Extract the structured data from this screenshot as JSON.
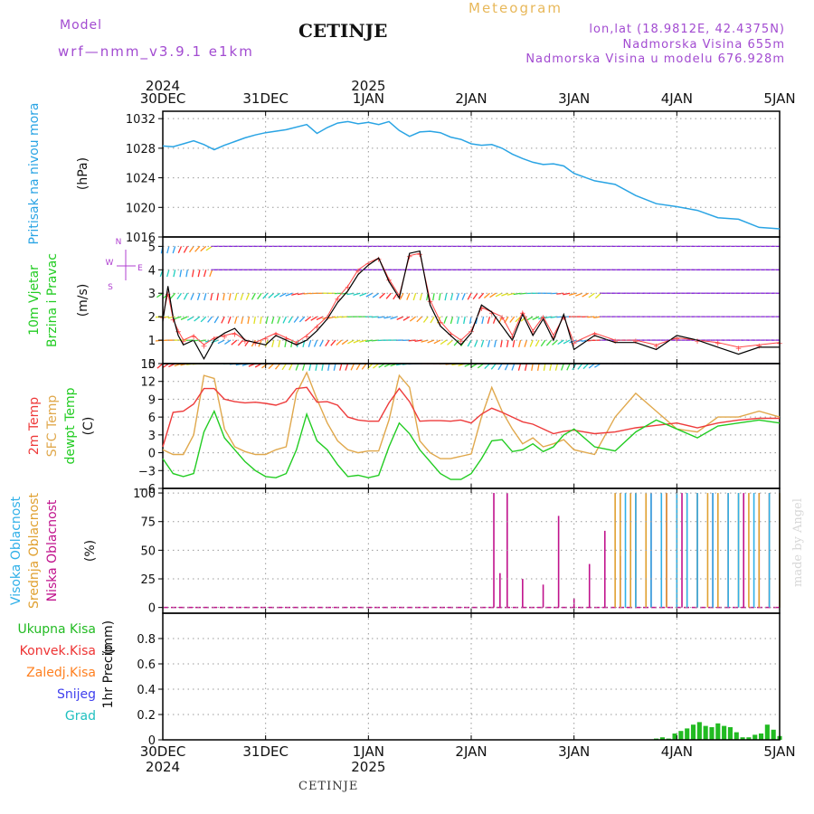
{
  "header": {
    "model_label": "Model",
    "model_id": "wrf—nmm_v3.9.1  e1km",
    "title": "CETINJE",
    "product": "Meteogram",
    "coords": "lon,lat (18.9812E, 42.4375N)",
    "elevation": "Nadmorska Visina 655m",
    "model_elevation": "Nadmorska Visina u modelu 676.928m"
  },
  "footer": {
    "station": "CETINJE",
    "credit": "made by Angel"
  },
  "colors": {
    "pressure": "#2aa4e4",
    "temp2m": "#ee3b3b",
    "sfc_temp": "#e0a84c",
    "dewpt": "#22cc22",
    "wind_speed": "#000000",
    "gust": "#ff4444",
    "cloud_high": "#30b0e8",
    "cloud_mid": "#e0a030",
    "cloud_low": "#c0128c",
    "precip_total": "#22bb22",
    "precip_conv": "#ee3333",
    "precip_frz": "#ff8020",
    "snow": "#4040ee",
    "hail": "#20c0c0",
    "arrow_purple": "#8822dd"
  },
  "chart_data": [
    {
      "type": "line",
      "panel": "pressure",
      "ylabel_1": "Pritisak na nivou mora",
      "ylabel_2": "(hPa)",
      "ylim": [
        1016,
        1033
      ],
      "yticks": [
        "1016",
        "1020",
        "1024",
        "1028",
        "1032"
      ],
      "ytick_values": [
        1016,
        1020,
        1024,
        1028,
        1032
      ],
      "x_top_years": [
        "2024",
        "2025"
      ],
      "x_top_year_days": [
        0,
        2
      ],
      "x_ticks": [
        "30DEC",
        "31DEC",
        "1JAN",
        "2JAN",
        "3JAN",
        "4JAN",
        "5JAN"
      ],
      "grid": true,
      "x": [
        0,
        0.1,
        0.2,
        0.3,
        0.4,
        0.5,
        0.6,
        0.7,
        0.8,
        0.9,
        1.0,
        1.2,
        1.4,
        1.5,
        1.6,
        1.7,
        1.8,
        1.9,
        2.0,
        2.1,
        2.2,
        2.3,
        2.4,
        2.5,
        2.6,
        2.7,
        2.8,
        2.9,
        3.0,
        3.1,
        3.2,
        3.3,
        3.4,
        3.5,
        3.6,
        3.7,
        3.8,
        3.9,
        4.0,
        4.2,
        4.4,
        4.6,
        4.8,
        5.0,
        5.2,
        5.4,
        5.6,
        5.8,
        6.0
      ],
      "series": [
        {
          "values": [
            1028.3,
            1028.2,
            1028.6,
            1029.0,
            1028.5,
            1027.8,
            1028.4,
            1028.9,
            1029.4,
            1029.8,
            1030.1,
            1030.5,
            1031.2,
            1030.0,
            1030.8,
            1031.4,
            1031.6,
            1031.3,
            1031.5,
            1031.2,
            1031.6,
            1030.4,
            1029.6,
            1030.2,
            1030.3,
            1030.1,
            1029.5,
            1029.2,
            1028.6,
            1028.4,
            1028.5,
            1028.0,
            1027.2,
            1026.6,
            1026.1,
            1025.8,
            1025.9,
            1025.6,
            1024.6,
            1023.6,
            1023.1,
            1021.6,
            1020.5,
            1020.1,
            1019.6,
            1018.6,
            1018.4,
            1017.3,
            1017.1
          ]
        }
      ]
    },
    {
      "type": "line",
      "panel": "wind",
      "ylabel_1": "10m Vjetar",
      "ylabel_2": "Brzina i Pravac",
      "ylabel_3": "(m/s)",
      "compass": {
        "n": "N",
        "s": "S",
        "e": "E",
        "w": "W"
      },
      "ylim": [
        0,
        5.4
      ],
      "yticks": [
        "0",
        "1",
        "2",
        "3",
        "4",
        "5"
      ],
      "ytick_values": [
        0,
        1,
        2,
        3,
        4,
        5
      ],
      "grid": true,
      "x": [
        0,
        0.05,
        0.1,
        0.15,
        0.2,
        0.3,
        0.4,
        0.5,
        0.6,
        0.7,
        0.8,
        0.9,
        1.0,
        1.1,
        1.2,
        1.3,
        1.4,
        1.5,
        1.6,
        1.7,
        1.8,
        1.9,
        2.0,
        2.1,
        2.2,
        2.3,
        2.4,
        2.5,
        2.6,
        2.7,
        2.8,
        2.9,
        3.0,
        3.1,
        3.2,
        3.3,
        3.4,
        3.5,
        3.6,
        3.7,
        3.8,
        3.9,
        4.0,
        4.2,
        4.4,
        4.6,
        4.8,
        5.0,
        5.2,
        5.4,
        5.6,
        5.8,
        6.0
      ],
      "series": [
        {
          "name": "speed",
          "values": [
            1.8,
            3.3,
            2.0,
            1.2,
            0.8,
            1.0,
            0.2,
            1.0,
            1.3,
            1.5,
            1.0,
            0.9,
            0.8,
            1.2,
            1.0,
            0.8,
            1.0,
            1.4,
            1.9,
            2.6,
            3.1,
            3.8,
            4.2,
            4.5,
            3.5,
            2.8,
            4.7,
            4.8,
            2.5,
            1.6,
            1.2,
            0.8,
            1.3,
            2.5,
            2.2,
            1.6,
            1.0,
            2.1,
            1.2,
            1.9,
            1.0,
            2.1,
            0.6,
            1.2,
            0.9,
            0.9,
            0.6,
            1.2,
            1.0,
            0.7,
            0.4,
            0.7,
            0.7
          ]
        },
        {
          "name": "gust",
          "values": [
            2.0,
            3.0,
            1.9,
            1.4,
            1.0,
            1.2,
            0.8,
            1.1,
            1.2,
            1.3,
            1.0,
            0.9,
            1.1,
            1.3,
            1.1,
            0.9,
            1.2,
            1.6,
            2.0,
            2.8,
            3.3,
            4.0,
            4.3,
            4.5,
            3.6,
            2.9,
            4.6,
            4.7,
            2.7,
            1.8,
            1.3,
            1.0,
            1.4,
            2.4,
            2.2,
            2.0,
            1.2,
            2.2,
            1.4,
            2.0,
            1.2,
            2.0,
            0.9,
            1.3,
            1.0,
            1.0,
            0.8,
            1.1,
            1.0,
            0.9,
            0.7,
            0.8,
            0.9
          ]
        }
      ]
    },
    {
      "type": "line",
      "panel": "temperature",
      "ylabel_1": "2m Temp",
      "ylabel_2": "SFC Temp",
      "ylabel_3": "dewpt Temp",
      "ylabel_4": "(C)",
      "ylim": [
        -6,
        15
      ],
      "yticks": [
        "−6",
        "−3",
        "0",
        "3",
        "6",
        "9",
        "12",
        "15"
      ],
      "ytick_values": [
        -6,
        -3,
        0,
        3,
        6,
        9,
        12,
        15
      ],
      "grid": true,
      "x": [
        0,
        0.1,
        0.2,
        0.3,
        0.4,
        0.5,
        0.6,
        0.7,
        0.8,
        0.9,
        1.0,
        1.1,
        1.2,
        1.3,
        1.4,
        1.5,
        1.6,
        1.7,
        1.8,
        1.9,
        2.0,
        2.1,
        2.2,
        2.3,
        2.4,
        2.5,
        2.6,
        2.7,
        2.8,
        2.9,
        3.0,
        3.1,
        3.2,
        3.3,
        3.4,
        3.5,
        3.6,
        3.7,
        3.8,
        3.9,
        4.0,
        4.2,
        4.4,
        4.6,
        4.8,
        5.0,
        5.2,
        5.4,
        5.6,
        5.8,
        6.0
      ],
      "series": [
        {
          "name": "2m Temp",
          "values": [
            1.0,
            6.8,
            7.0,
            8.2,
            10.8,
            10.8,
            9.0,
            8.6,
            8.4,
            8.5,
            8.3,
            8.0,
            8.6,
            10.8,
            11.0,
            8.5,
            8.6,
            8.0,
            6.0,
            5.5,
            5.3,
            5.3,
            8.4,
            10.8,
            8.6,
            5.3,
            5.4,
            5.4,
            5.3,
            5.5,
            5.0,
            6.5,
            7.5,
            6.8,
            6.0,
            5.2,
            4.8,
            4.0,
            3.2,
            3.6,
            3.8,
            3.2,
            3.5,
            4.2,
            4.6,
            5.0,
            4.2,
            5.0,
            5.5,
            5.8,
            5.8
          ]
        },
        {
          "name": "SFC Temp",
          "values": [
            0.5,
            -0.3,
            -0.3,
            3.0,
            13.0,
            12.5,
            4.0,
            1.0,
            0.2,
            -0.3,
            -0.3,
            0.5,
            1.0,
            10.0,
            13.5,
            9.0,
            5.0,
            2.0,
            0.5,
            0.0,
            0.3,
            0.3,
            5.5,
            13.0,
            11.0,
            2.0,
            0.0,
            -1.0,
            -1.0,
            -0.6,
            -0.2,
            6.0,
            11.0,
            7.0,
            4.0,
            1.5,
            2.5,
            1.0,
            1.5,
            2.2,
            0.5,
            -0.3,
            6.0,
            10.0,
            7.0,
            4.0,
            3.5,
            6.0,
            6.0,
            7.0,
            6.0
          ]
        },
        {
          "name": "dewpt Temp",
          "values": [
            -1.0,
            -3.5,
            -4.0,
            -3.5,
            3.5,
            7.0,
            2.5,
            0.5,
            -1.5,
            -3.0,
            -4.0,
            -4.2,
            -3.5,
            0.5,
            6.5,
            2.0,
            0.5,
            -2.0,
            -4.0,
            -3.8,
            -4.2,
            -3.8,
            1.0,
            5.0,
            3.2,
            0.5,
            -1.5,
            -3.5,
            -4.5,
            -4.5,
            -3.5,
            -1.0,
            2.0,
            2.2,
            0.2,
            0.5,
            1.5,
            0.2,
            1.0,
            3.0,
            4.0,
            1.0,
            0.3,
            3.5,
            5.5,
            4.0,
            2.5,
            4.5,
            5.0,
            5.5,
            5.0
          ]
        }
      ]
    },
    {
      "type": "bar",
      "panel": "cloud",
      "ylabel_1": "Visoka Oblacnost",
      "ylabel_2": "Srednja Oblacnost",
      "ylabel_3": "Niska Oblacnost",
      "ylabel_4": "(%)",
      "ylim": [
        -5,
        104
      ],
      "yticks": [
        "0",
        "25",
        "50",
        "75",
        "100"
      ],
      "ytick_values": [
        0,
        25,
        50,
        75,
        100
      ],
      "grid": true,
      "series": [
        {
          "name": "low",
          "x": [
            3.5,
            3.7,
            3.85,
            4.0,
            4.15,
            4.3,
            4.45,
            4.6,
            4.75,
            4.9,
            5.05,
            5.2,
            5.35,
            5.5,
            5.65,
            5.8,
            5.9,
            3.22,
            3.28,
            3.35
          ],
          "values": [
            25,
            20,
            80,
            8,
            38,
            67,
            45,
            100,
            100,
            100,
            100,
            100,
            100,
            100,
            100,
            100,
            100,
            100,
            30,
            100
          ]
        },
        {
          "name": "mid",
          "x": [
            4.4,
            4.45,
            4.55,
            4.6,
            4.7,
            4.9,
            5.0,
            5.1,
            5.2,
            5.3,
            5.4,
            5.5,
            5.6,
            5.7,
            5.8,
            5.9,
            6.0
          ],
          "values": [
            100,
            100,
            100,
            100,
            100,
            100,
            100,
            100,
            100,
            100,
            100,
            100,
            100,
            100,
            100,
            100,
            100
          ]
        },
        {
          "name": "high",
          "x": [
            4.5,
            4.6,
            4.75,
            4.85,
            5.0,
            5.1,
            5.2,
            5.35,
            5.5,
            5.6,
            5.75,
            5.9
          ],
          "values": [
            100,
            100,
            100,
            100,
            100,
            100,
            100,
            100,
            100,
            100,
            100,
            100
          ]
        }
      ]
    },
    {
      "type": "bar",
      "panel": "precipitation",
      "legend": [
        "Ukupna Kisa",
        "Konvek.Kisa",
        "Zaledj.Kisa",
        "Snijeg",
        "Grad"
      ],
      "ylabel_1": "1hr Precip",
      "ylabel_2": "(mm)",
      "ylim": [
        0,
        1.0
      ],
      "yticks": [
        "0",
        "0.2",
        "0.4",
        "0.6",
        "0.8"
      ],
      "ytick_values": [
        0,
        0.2,
        0.4,
        0.6,
        0.8
      ],
      "grid": true,
      "x_bottom_years": [
        "2024",
        "2025"
      ],
      "x_bottom_year_days": [
        0,
        2
      ],
      "series": [
        {
          "name": "Ukupna Kisa",
          "x": [
            4.8,
            4.86,
            4.92,
            4.98,
            5.04,
            5.1,
            5.16,
            5.22,
            5.28,
            5.34,
            5.4,
            5.46,
            5.52,
            5.58,
            5.64,
            5.7,
            5.76,
            5.82,
            5.88,
            5.94,
            6.0
          ],
          "values": [
            0.01,
            0.02,
            0.01,
            0.05,
            0.07,
            0.09,
            0.12,
            0.14,
            0.11,
            0.1,
            0.13,
            0.11,
            0.1,
            0.06,
            0.02,
            0.02,
            0.04,
            0.05,
            0.12,
            0.08,
            0.03
          ]
        }
      ]
    }
  ]
}
